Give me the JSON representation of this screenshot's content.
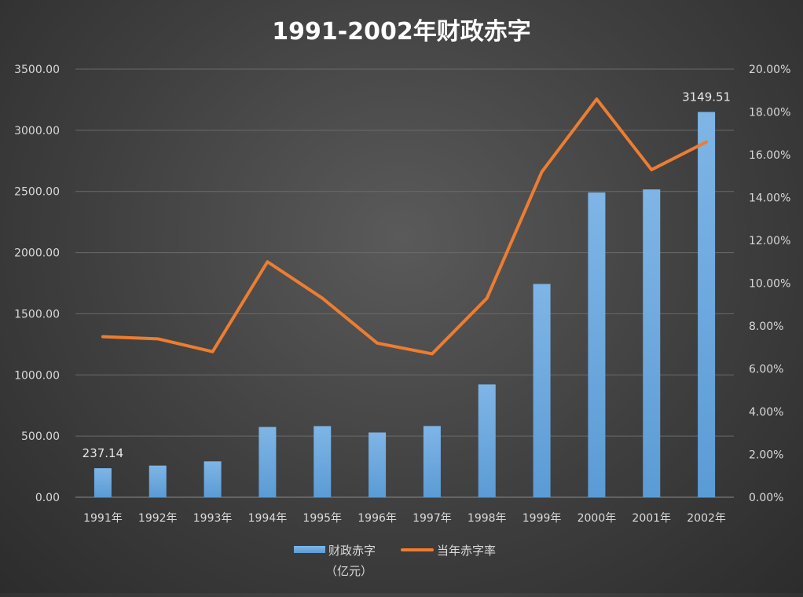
{
  "chart_data": {
    "type": "bar",
    "title": "1991-2002年财政赤字",
    "categories": [
      "1991年",
      "1992年",
      "1993年",
      "1994年",
      "1995年",
      "1996年",
      "1997年",
      "1998年",
      "1999年",
      "2000年",
      "2001年",
      "2002年"
    ],
    "series": [
      {
        "name": "财政赤字（亿元）",
        "legend_lines": [
          "财政赤字",
          "（亿元）"
        ],
        "type": "bar",
        "axis": "left",
        "values": [
          237.14,
          258.83,
          293.35,
          574.52,
          581.52,
          529.56,
          582.42,
          922.23,
          1743.59,
          2491.27,
          2516.54,
          3149.51
        ],
        "color": "#5b9bd5"
      },
      {
        "name": "当年赤字率",
        "type": "line",
        "axis": "right",
        "values": [
          7.5,
          7.4,
          6.8,
          11.0,
          9.3,
          7.2,
          6.7,
          9.3,
          15.2,
          18.6,
          15.3,
          16.6
        ],
        "color": "#ed7d31"
      }
    ],
    "y_left": {
      "ylim": [
        0,
        3500
      ],
      "ticks": [
        0,
        500,
        1000,
        1500,
        2000,
        2500,
        3000,
        3500
      ],
      "tick_labels": [
        "0.00",
        "500.00",
        "1000.00",
        "1500.00",
        "2000.00",
        "2500.00",
        "3000.00",
        "3500.00"
      ]
    },
    "y_right": {
      "ylim": [
        0,
        20
      ],
      "ticks": [
        0,
        2,
        4,
        6,
        8,
        10,
        12,
        14,
        16,
        18,
        20
      ],
      "tick_labels": [
        "0.00%",
        "2.00%",
        "4.00%",
        "6.00%",
        "8.00%",
        "10.00%",
        "12.00%",
        "14.00%",
        "16.00%",
        "18.00%",
        "20.00%"
      ]
    },
    "data_labels": [
      {
        "series": 0,
        "index": 0,
        "text": "237.14"
      },
      {
        "series": 0,
        "index": 11,
        "text": "3149.51"
      }
    ],
    "grid": true,
    "legend_position": "bottom"
  }
}
